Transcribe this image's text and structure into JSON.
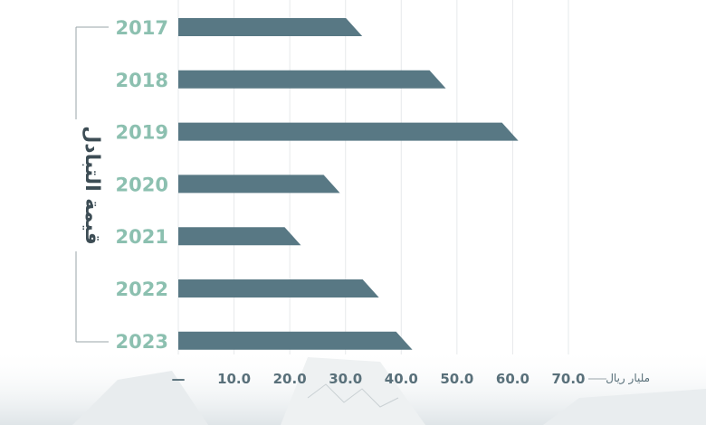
{
  "chart_data": {
    "type": "bar",
    "orientation": "horizontal",
    "categories": [
      "2017",
      "2018",
      "2019",
      "2020",
      "2021",
      "2022",
      "2023"
    ],
    "values": [
      33.0,
      48.0,
      61.0,
      29.0,
      22.0,
      36.0,
      42.0
    ],
    "xlim": [
      0,
      70
    ],
    "x_ticks": [
      "—",
      "10.0",
      "20.0",
      "30.0",
      "40.0",
      "50.0",
      "60.0",
      "70.0"
    ],
    "unit_label": "مليار ريال",
    "ylabel": "قيمة التبادل",
    "grid": true,
    "colors": {
      "bar": "#587884",
      "year_label": "#8cc0b0",
      "grid": "#e6e9eb",
      "bracket": "#9aa5aa"
    }
  }
}
